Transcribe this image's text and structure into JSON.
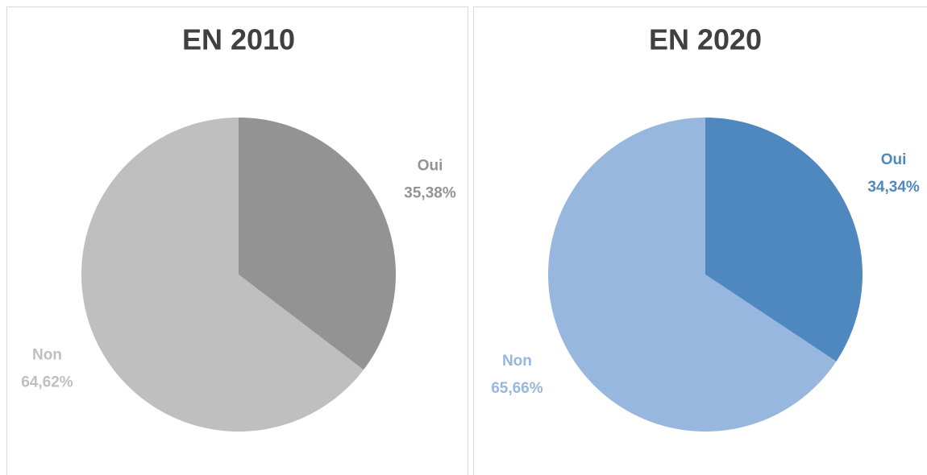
{
  "chart_data": [
    {
      "type": "pie",
      "title": "EN 2010",
      "categories": [
        "Oui",
        "Non"
      ],
      "values": [
        35.38,
        64.62
      ],
      "value_labels": [
        "35,38%",
        "64,62%"
      ],
      "colors": [
        "#939393",
        "#bfbfbf"
      ]
    },
    {
      "type": "pie",
      "title": "EN 2020",
      "categories": [
        "Oui",
        "Non"
      ],
      "values": [
        34.34,
        65.66
      ],
      "value_labels": [
        "34,34%",
        "65,66%"
      ],
      "colors": [
        "#4f88be",
        "#97b7de"
      ]
    }
  ]
}
